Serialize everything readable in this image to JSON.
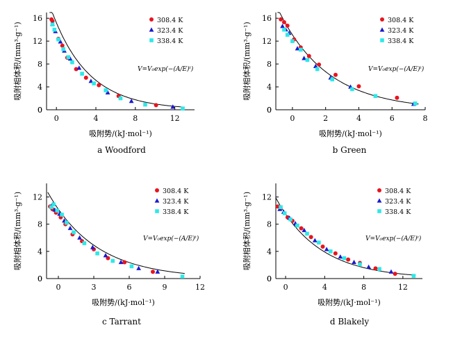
{
  "figure": {
    "y_axis_title": "吸附相体积/(mm³·g⁻¹)",
    "x_axis_title": "吸附势/(kJ·mol⁻¹)"
  },
  "chart_data": [
    {
      "type": "scatter",
      "panel_label": "a  Woodford",
      "equation": "V=V₀exp(−(A/E)ᵗ)",
      "xlim": [
        -1,
        14
      ],
      "ylim": [
        0,
        17
      ],
      "xticks": [
        0,
        4,
        8,
        12
      ],
      "yticks": [
        0,
        4,
        8,
        12,
        16
      ],
      "legend": [
        "308.4 K",
        "323.4 K",
        "338.4 K"
      ],
      "fit": {
        "V0": 15.2,
        "E": 3.7,
        "t": 1.0
      },
      "series": [
        {
          "name": "308.4 K",
          "color": "#e8141e",
          "marker": "circle",
          "x": [
            -0.5,
            -0.4,
            0.2,
            0.6,
            1.1,
            2.0,
            3.0,
            4.3,
            6.3,
            10.1
          ],
          "y": [
            15.8,
            15.5,
            12.4,
            11.2,
            9.1,
            7.1,
            5.6,
            4.3,
            2.4,
            0.8
          ]
        },
        {
          "name": "323.4 K",
          "color": "#1a1acc",
          "marker": "triangle",
          "x": [
            -0.4,
            -0.1,
            0.4,
            0.8,
            1.4,
            2.3,
            3.5,
            5.2,
            7.6,
            11.8
          ],
          "y": [
            15.0,
            13.7,
            11.9,
            10.3,
            8.9,
            7.3,
            5.0,
            3.0,
            1.5,
            0.5
          ]
        },
        {
          "name": "338.4 K",
          "color": "#2ee8e8",
          "marker": "square",
          "x": [
            -0.4,
            -0.2,
            0.2,
            0.7,
            1.2,
            1.6,
            2.6,
            3.8,
            5.0,
            6.5,
            9.0,
            12.8
          ],
          "y": [
            14.9,
            14.0,
            12.3,
            10.6,
            9.2,
            8.3,
            6.3,
            4.6,
            3.4,
            2.0,
            0.9,
            0.2
          ]
        }
      ]
    },
    {
      "type": "scatter",
      "panel_label": "b  Green",
      "equation": "V=V₀exp(−(A/E)ᵗ)",
      "xlim": [
        -1,
        8
      ],
      "ylim": [
        0,
        17
      ],
      "xticks": [
        0,
        2,
        4,
        6,
        8
      ],
      "yticks": [
        0,
        4,
        8,
        12,
        16
      ],
      "legend": [
        "308.4 K",
        "323.4 K",
        "338.4 K"
      ],
      "fit": {
        "V0": 13.1,
        "E": 2.95,
        "t": 1.0
      },
      "series": [
        {
          "name": "308.4 K",
          "color": "#e8141e",
          "marker": "circle",
          "x": [
            -0.7,
            -0.5,
            -0.3,
            0.1,
            0.5,
            1.0,
            1.6,
            2.6,
            4.0,
            6.3
          ],
          "y": [
            15.8,
            15.3,
            14.7,
            12.3,
            10.9,
            9.4,
            7.9,
            6.1,
            4.1,
            2.1
          ]
        },
        {
          "name": "323.4 K",
          "color": "#1a1acc",
          "marker": "triangle",
          "x": [
            -0.6,
            -0.4,
            -0.2,
            0.3,
            0.7,
            1.4,
            2.3,
            3.5,
            7.3
          ],
          "y": [
            14.6,
            14.0,
            13.4,
            10.7,
            9.0,
            7.6,
            5.6,
            4.0,
            1.0
          ]
        },
        {
          "name": "338.4 K",
          "color": "#2ee8e8",
          "marker": "square",
          "x": [
            -0.5,
            -0.3,
            0.0,
            0.5,
            0.9,
            1.5,
            2.4,
            3.6,
            5.0,
            7.4
          ],
          "y": [
            14.0,
            13.1,
            12.0,
            10.5,
            8.7,
            7.1,
            5.3,
            3.6,
            2.4,
            1.1
          ]
        }
      ]
    },
    {
      "type": "scatter",
      "panel_label": "c  Tarrant",
      "equation": "V=V₀exp(−(A/E)ᵗ)",
      "xlim": [
        -1,
        12
      ],
      "ylim": [
        0,
        14
      ],
      "xticks": [
        0,
        3,
        6,
        9,
        12
      ],
      "yticks": [
        0,
        4,
        8,
        12
      ],
      "legend": [
        "308.4 K",
        "323.4 K",
        "338.4 K"
      ],
      "fit": {
        "V0": 10.2,
        "E": 4.1,
        "t": 1.0
      },
      "series": [
        {
          "name": "308.4 K",
          "color": "#e8141e",
          "marker": "circle",
          "x": [
            -0.7,
            -0.5,
            -0.2,
            0.2,
            0.6,
            1.2,
            2.0,
            3.0,
            4.2,
            5.6,
            8.0
          ],
          "y": [
            10.6,
            10.2,
            9.7,
            9.0,
            8.0,
            6.5,
            5.5,
            4.3,
            3.0,
            2.4,
            1.0
          ]
        },
        {
          "name": "323.4 K",
          "color": "#1a1acc",
          "marker": "triangle",
          "x": [
            -0.5,
            -0.3,
            0.1,
            0.5,
            1.0,
            1.8,
            2.9,
            4.0,
            5.3,
            6.8,
            8.4
          ],
          "y": [
            10.9,
            10.1,
            9.5,
            8.5,
            7.4,
            6.0,
            4.6,
            3.4,
            2.4,
            1.5,
            1.0
          ]
        },
        {
          "name": "338.4 K",
          "color": "#2ee8e8",
          "marker": "square",
          "x": [
            -0.6,
            -0.4,
            -0.1,
            0.3,
            0.7,
            1.3,
            2.2,
            3.3,
            4.6,
            6.2,
            10.5
          ],
          "y": [
            10.5,
            10.9,
            10.0,
            9.4,
            8.2,
            6.8,
            5.2,
            3.7,
            2.6,
            1.8,
            0.3
          ]
        }
      ]
    },
    {
      "type": "scatter",
      "panel_label": "d  Blakely",
      "equation": "V=V₀exp(−(A/E)ᵗ)",
      "xlim": [
        -1,
        14
      ],
      "ylim": [
        0,
        14
      ],
      "xticks": [
        0,
        4,
        8,
        12
      ],
      "yticks": [
        0,
        4,
        8,
        12
      ],
      "legend": [
        "308.4 K",
        "323.4 K",
        "338.4 K"
      ],
      "fit": {
        "V0": 9.5,
        "E": 4.5,
        "t": 1.0
      },
      "series": [
        {
          "name": "308.4 K",
          "color": "#e8141e",
          "marker": "circle",
          "x": [
            -0.8,
            -0.5,
            0.2,
            0.7,
            1.6,
            2.6,
            3.8,
            5.1,
            6.4,
            7.6,
            9.2,
            11.2
          ],
          "y": [
            10.6,
            10.3,
            9.0,
            8.5,
            7.4,
            6.1,
            4.7,
            3.7,
            2.8,
            2.3,
            1.5,
            0.7
          ]
        },
        {
          "name": "323.4 K",
          "color": "#1a1acc",
          "marker": "triangle",
          "x": [
            -0.6,
            -0.2,
            0.4,
            1.0,
            1.9,
            3.0,
            4.2,
            5.6,
            7.0,
            8.5,
            10.8
          ],
          "y": [
            10.2,
            9.8,
            8.9,
            8.1,
            7.1,
            5.6,
            4.3,
            3.2,
            2.4,
            1.7,
            1.0
          ]
        },
        {
          "name": "338.4 K",
          "color": "#2ee8e8",
          "marker": "square",
          "x": [
            -0.5,
            -0.1,
            0.5,
            1.2,
            2.2,
            3.4,
            4.6,
            6.0,
            7.6,
            9.6,
            13.1
          ],
          "y": [
            10.5,
            9.6,
            8.7,
            7.8,
            6.6,
            5.3,
            4.0,
            3.0,
            2.1,
            1.4,
            0.4
          ]
        }
      ]
    }
  ]
}
